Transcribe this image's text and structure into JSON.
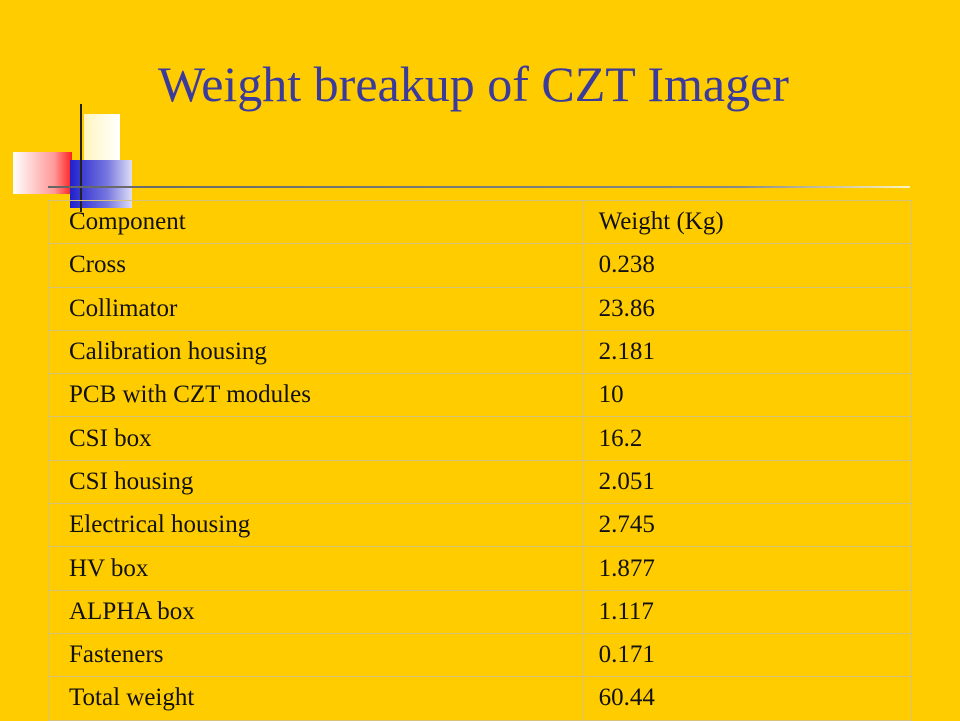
{
  "slide": {
    "title": "Weight breakup of CZT Imager",
    "colors": {
      "background": "#FFCC00",
      "title": "#3B3B9B",
      "text": "#111111"
    }
  },
  "table": {
    "headers": [
      "Component",
      "Weight (Kg)"
    ],
    "rows": [
      {
        "component": "Cross",
        "weight": "0.238"
      },
      {
        "component": "Collimator",
        "weight": "23.86"
      },
      {
        "component": "Calibration housing",
        "weight": "2.181"
      },
      {
        "component": "PCB with CZT modules",
        "weight": "10"
      },
      {
        "component": "CSI box",
        "weight": "16.2"
      },
      {
        "component": "CSI housing",
        "weight": "2.051"
      },
      {
        "component": "Electrical housing",
        "weight": "2.745"
      },
      {
        "component": "HV box",
        "weight": "1.877"
      },
      {
        "component": "ALPHA box",
        "weight": "1.117"
      },
      {
        "component": "Fasteners",
        "weight": "0.171"
      },
      {
        "component": "Total weight",
        "weight": "60.44"
      }
    ]
  }
}
